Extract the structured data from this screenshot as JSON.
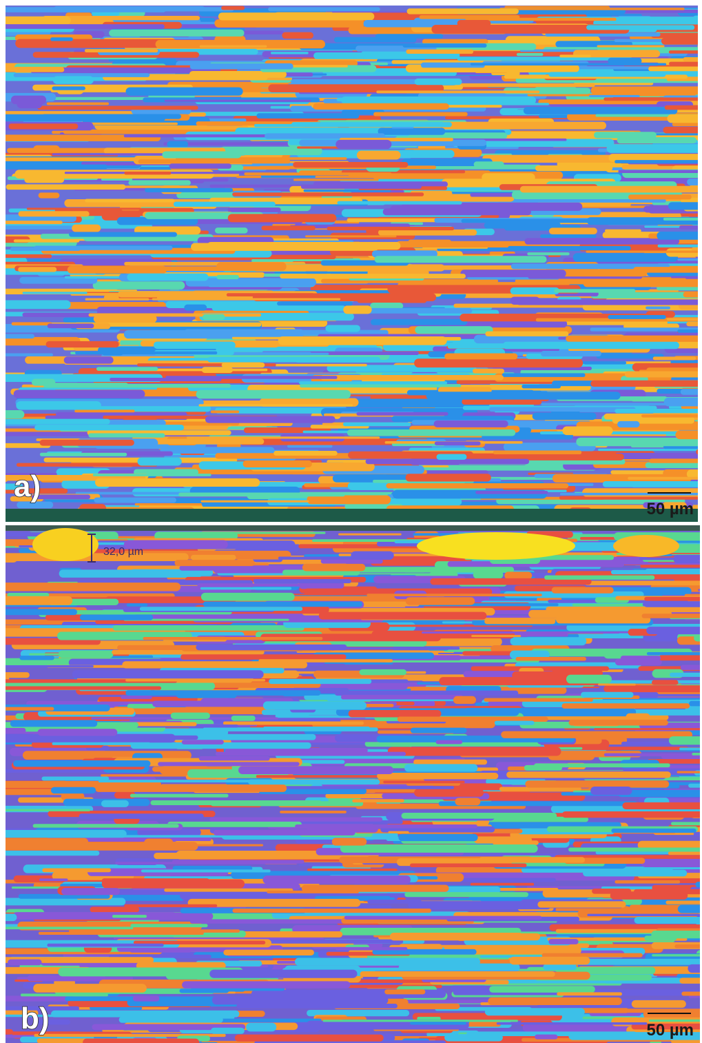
{
  "panels": [
    {
      "label": "a)",
      "scale_bar": "50 µm"
    },
    {
      "label": "b)",
      "scale_bar": "50 µm",
      "measurement": "32,0 µm"
    }
  ]
}
